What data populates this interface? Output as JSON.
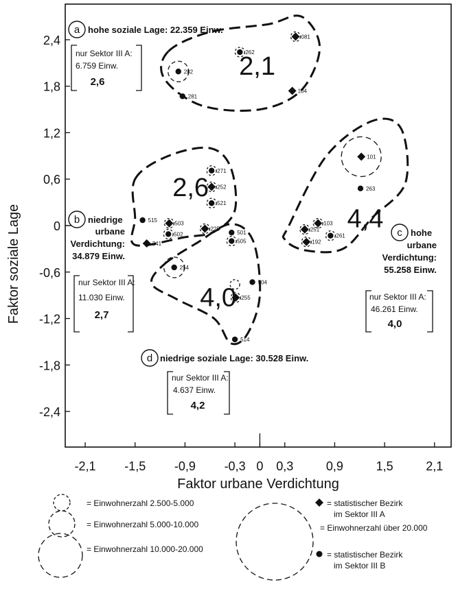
{
  "chart_data": {
    "type": "scatter",
    "xlabel": "Faktor urbane Verdichtung",
    "ylabel": "Faktor soziale Lage",
    "xlim": [
      -2.34,
      2.3
    ],
    "ylim": [
      -2.86,
      2.86
    ],
    "x_ticks": [
      "-2,1",
      "-1,5",
      "-0,9",
      "-0,3",
      "0",
      "0,3",
      "0,9",
      "1,5",
      "2,1"
    ],
    "y_ticks": [
      "2,4",
      "1,8",
      "1,2",
      "0,6",
      "0",
      "-0,6",
      "-1,2",
      "-1,8",
      "-2,4"
    ],
    "x_tick_values": [
      -2.1,
      -1.5,
      -0.9,
      -0.3,
      0,
      0.3,
      0.9,
      1.5,
      2.1
    ],
    "y_tick_values": [
      2.4,
      1.8,
      1.2,
      0.6,
      0,
      -0.6,
      -1.2,
      -1.8,
      -2.4
    ],
    "grid": false,
    "points": [
      {
        "label": "081",
        "x": 0.43,
        "y": 2.44,
        "marker": "diamond",
        "size": "small"
      },
      {
        "label": "262",
        "x": -0.24,
        "y": 2.24,
        "marker": "dot",
        "size": "small"
      },
      {
        "label": "282",
        "x": -0.98,
        "y": 1.99,
        "marker": "dot",
        "size": "medium"
      },
      {
        "label": "281",
        "x": -0.93,
        "y": 1.67,
        "marker": "dot",
        "size": ""
      },
      {
        "label": "104",
        "x": 0.39,
        "y": 1.74,
        "marker": "diamond",
        "size": ""
      },
      {
        "label": "101",
        "x": 1.22,
        "y": 0.89,
        "marker": "diamond",
        "size": "large"
      },
      {
        "label": "263",
        "x": 1.21,
        "y": 0.48,
        "marker": "dot",
        "size": ""
      },
      {
        "label": "271",
        "x": -0.58,
        "y": 0.71,
        "marker": "dot",
        "size": "small"
      },
      {
        "label": "252",
        "x": -0.58,
        "y": 0.5,
        "marker": "diamond",
        "size": "small"
      },
      {
        "label": "521",
        "x": -0.58,
        "y": 0.29,
        "marker": "dot",
        "size": "small"
      },
      {
        "label": "225",
        "x": -0.66,
        "y": -0.04,
        "marker": "diamond",
        "size": "small"
      },
      {
        "label": "515",
        "x": -1.41,
        "y": 0.07,
        "marker": "dot",
        "size": ""
      },
      {
        "label": "503",
        "x": -1.09,
        "y": 0.03,
        "marker": "diamond",
        "size": "small"
      },
      {
        "label": "502",
        "x": -1.1,
        "y": -0.11,
        "marker": "dot",
        "size": "small"
      },
      {
        "label": "241",
        "x": -1.36,
        "y": -0.23,
        "marker": "diamond",
        "size": ""
      },
      {
        "label": "501",
        "x": -0.34,
        "y": -0.09,
        "marker": "dot",
        "size": ""
      },
      {
        "label": "505",
        "x": -0.34,
        "y": -0.2,
        "marker": "dot",
        "size": "small"
      },
      {
        "label": "254",
        "x": -1.03,
        "y": -0.54,
        "marker": "dot",
        "size": "medium"
      },
      {
        "label": "504",
        "x": -0.09,
        "y": -0.73,
        "marker": "dot",
        "size": ""
      },
      {
        "label": "255",
        "x": -0.29,
        "y": -0.93,
        "marker": "diamond",
        "size": "small"
      },
      {
        "label": "514",
        "x": -0.3,
        "y": -1.47,
        "marker": "dot",
        "size": ""
      },
      {
        "label": "251",
        "x": 0.54,
        "y": -0.05,
        "marker": "diamond",
        "size": "small"
      },
      {
        "label": "103",
        "x": 0.7,
        "y": 0.03,
        "marker": "diamond",
        "size": "small"
      },
      {
        "label": "192",
        "x": 0.56,
        "y": -0.21,
        "marker": "diamond",
        "size": "small"
      },
      {
        "label": "261",
        "x": 0.85,
        "y": -0.13,
        "marker": "dot",
        "size": "small"
      }
    ],
    "extra_rings": [
      {
        "x": -0.3,
        "y": -0.76,
        "size": "small"
      }
    ],
    "clusters": [
      {
        "value": "2,1",
        "label_x": -0.25,
        "label_y": 1.95,
        "outline": [
          [
            -1.1,
            2.25
          ],
          [
            -0.6,
            2.5
          ],
          [
            0.1,
            2.6
          ],
          [
            0.5,
            2.7
          ],
          [
            0.72,
            2.3
          ],
          [
            0.5,
            1.75
          ],
          [
            0.0,
            1.5
          ],
          [
            -0.7,
            1.55
          ],
          [
            -1.15,
            1.9
          ]
        ]
      },
      {
        "value": "2,6",
        "label_x": -1.05,
        "label_y": 0.38,
        "outline": [
          [
            -1.5,
            0.6
          ],
          [
            -1.1,
            0.9
          ],
          [
            -0.6,
            1.0
          ],
          [
            -0.35,
            0.75
          ],
          [
            -0.3,
            0.2
          ],
          [
            -0.55,
            -0.08
          ],
          [
            -0.9,
            -0.15
          ],
          [
            -1.5,
            -0.25
          ],
          [
            -1.5,
            0.1
          ]
        ]
      },
      {
        "value": "4,0",
        "label_x": -0.72,
        "label_y": -1.04,
        "outline": [
          [
            -1.15,
            -0.5
          ],
          [
            -0.75,
            -0.22
          ],
          [
            -0.35,
            0.02
          ],
          [
            -0.08,
            -0.2
          ],
          [
            0.0,
            -0.9
          ],
          [
            -0.15,
            -1.4
          ],
          [
            -0.35,
            -1.52
          ],
          [
            -0.55,
            -1.2
          ],
          [
            -1.0,
            -0.95
          ],
          [
            -1.3,
            -0.75
          ]
        ]
      },
      {
        "value": "4,4",
        "label_x": 1.05,
        "label_y": -0.02,
        "outline": [
          [
            0.35,
            0.0
          ],
          [
            0.8,
            0.9
          ],
          [
            1.35,
            1.35
          ],
          [
            1.7,
            1.25
          ],
          [
            1.75,
            0.55
          ],
          [
            1.35,
            0.1
          ],
          [
            1.0,
            -0.3
          ],
          [
            0.55,
            -0.32
          ],
          [
            0.3,
            -0.18
          ]
        ]
      }
    ],
    "corner_labels": [
      {
        "letter": "a",
        "text": "hohe soziale Lage: 22.359 Einw.",
        "lines": []
      },
      {
        "letter": "b",
        "text": "niedrige",
        "lines": [
          "urbane",
          "Verdichtung:",
          "34.879 Einw."
        ]
      },
      {
        "letter": "c",
        "text": "hohe",
        "lines": [
          "urbane",
          "Verdichtung:",
          "55.258 Einw."
        ]
      },
      {
        "letter": "d",
        "text": "niedrige soziale Lage: 30.528 Einw.",
        "lines": []
      }
    ],
    "sector_boxes": [
      {
        "line1": "nur Sektor III A:",
        "line2": "6.759 Einw.",
        "value": "2,6"
      },
      {
        "line1": "nur Sektor III A:",
        "line2": "11.030 Einw.",
        "value": "2,7"
      },
      {
        "line1": "nur Sektor III A:",
        "line2": "46.261 Einw.",
        "value": "4,0"
      },
      {
        "line1": "nur Sektor III A:",
        "line2": "4.637 Einw.",
        "value": "4,2"
      }
    ],
    "legend": {
      "small": "= Einwohnerzahl 2.500-5.000",
      "medium": "= Einwohnerzahl 5.000-10.000",
      "large": "= Einwohnerzahl 10.000-20.000",
      "xlarge": "= Einwohnerzahl über 20.000",
      "diamond": [
        "= statistischer Bezirk",
        "im Sektor III A"
      ],
      "dot": [
        "= statistischer Bezirk",
        "im Sektor III B"
      ]
    }
  }
}
